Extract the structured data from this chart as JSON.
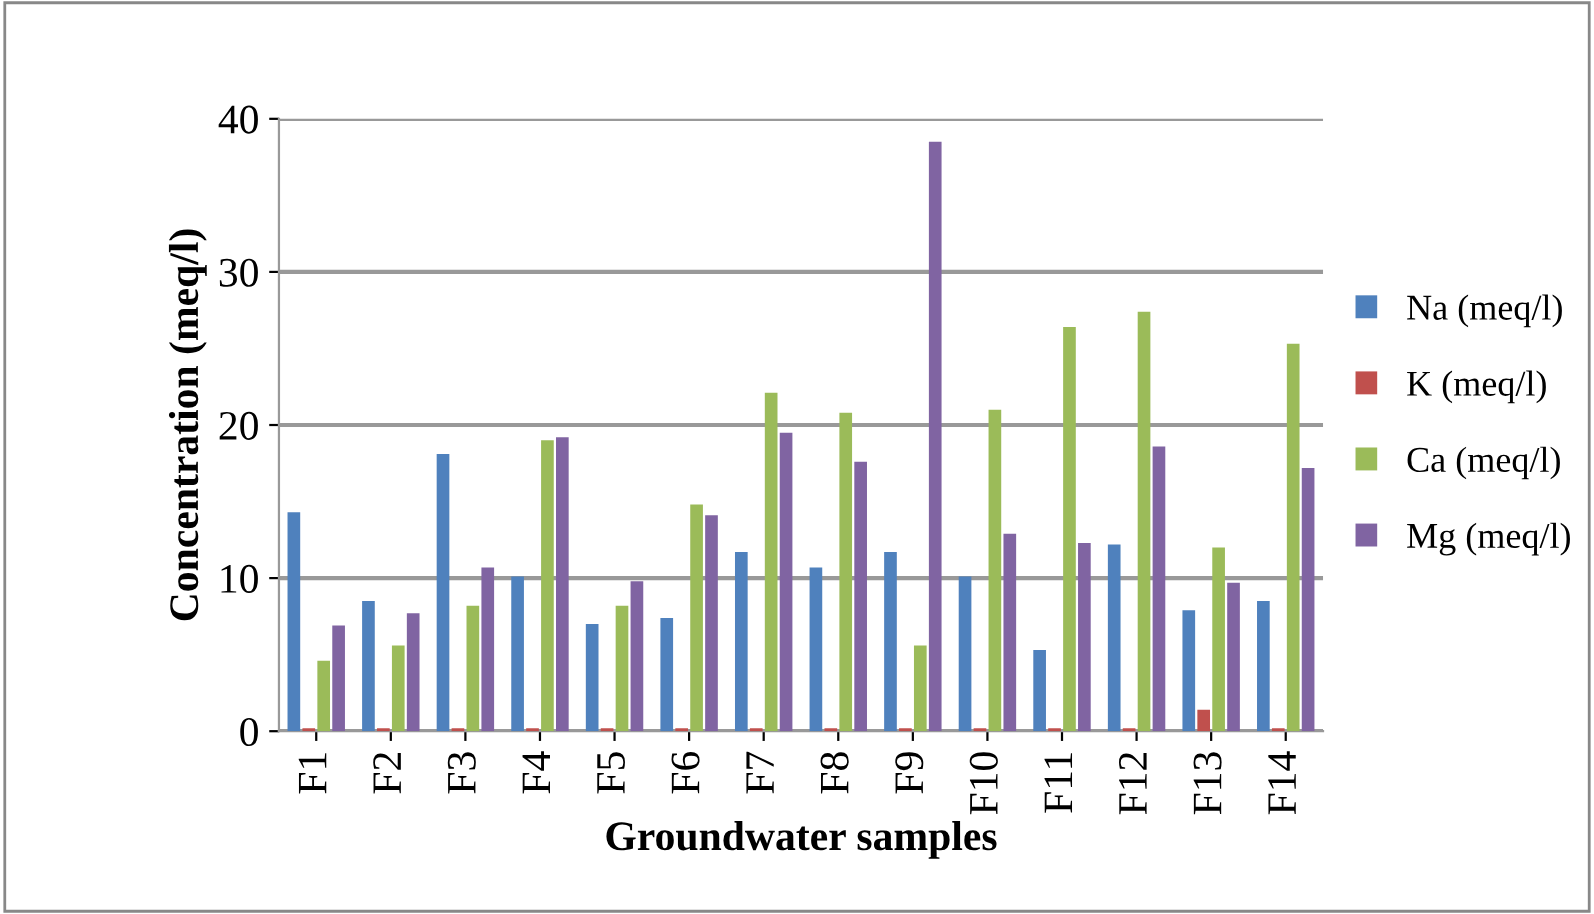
{
  "chart_data": {
    "type": "bar",
    "xlabel": "Groundwater samples",
    "ylabel": "Concentration (meq/l)",
    "categories": [
      "F1",
      "F2",
      "F3",
      "F4",
      "F5",
      "F6",
      "F7",
      "F8",
      "F9",
      "F10",
      "F11",
      "F12",
      "F13",
      "F14"
    ],
    "series": [
      {
        "name": "Na (meq/l)",
        "color": "#4f81bd",
        "values": [
          14.3,
          8.5,
          18.1,
          10.1,
          7.0,
          7.4,
          11.7,
          10.7,
          11.7,
          10.1,
          5.3,
          12.2,
          7.9,
          8.5
        ]
      },
      {
        "name": "K (meq/l)",
        "color": "#c0504d",
        "values": [
          0.2,
          0.2,
          0.2,
          0.2,
          0.2,
          0.2,
          0.2,
          0.2,
          0.2,
          0.2,
          0.2,
          0.2,
          1.4,
          0.2
        ]
      },
      {
        "name": "Ca (meq/l)",
        "color": "#9bbb59",
        "values": [
          4.6,
          5.6,
          8.2,
          19.0,
          8.2,
          14.8,
          22.1,
          20.8,
          5.6,
          21.0,
          26.4,
          27.4,
          12.0,
          25.3
        ]
      },
      {
        "name": "Mg (meq/l)",
        "color": "#8064a2",
        "values": [
          6.9,
          7.7,
          10.7,
          19.2,
          9.8,
          14.1,
          19.5,
          17.6,
          38.5,
          12.9,
          12.3,
          18.6,
          9.7,
          17.2
        ]
      }
    ],
    "ylim": [
      0,
      40
    ],
    "yticks": [
      0,
      10,
      20,
      30,
      40
    ],
    "grid": "y",
    "legend": "right"
  }
}
